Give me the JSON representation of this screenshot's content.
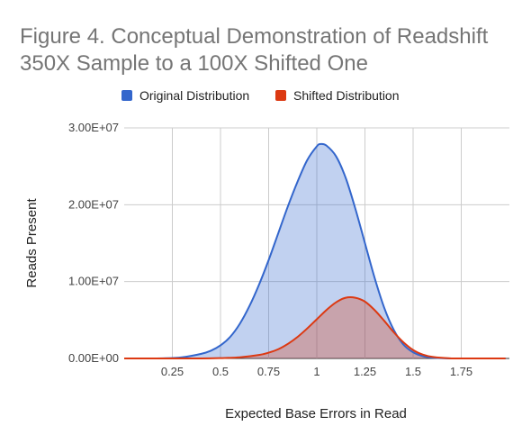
{
  "chart_data": {
    "type": "area",
    "title_line1": "Figure 4. Conceptual Demonstration of Readshift",
    "title_line2": "350X Sample to a 100X Shifted One",
    "xlabel": "Expected Base Errors in Read",
    "ylabel": "Reads Present",
    "xlim": [
      0,
      2
    ],
    "ylim": [
      0,
      30000000
    ],
    "x_ticks": [
      0.25,
      0.5,
      0.75,
      1,
      1.25,
      1.5,
      1.75
    ],
    "x_tick_labels": [
      "0.25",
      "0.5",
      "0.75",
      "1",
      "1.25",
      "1.5",
      "1.75"
    ],
    "y_ticks": [
      0,
      10000000,
      20000000,
      30000000
    ],
    "y_tick_labels": [
      "0.00E+00",
      "1.00E+07",
      "2.00E+07",
      "3.00E+07"
    ],
    "grid": true,
    "legend_position": "top",
    "series": [
      {
        "name": "Original Distribution",
        "color": "#3366cc",
        "x": [
          0.0,
          0.1,
          0.2,
          0.3,
          0.4,
          0.45,
          0.5,
          0.55,
          0.6,
          0.65,
          0.7,
          0.75,
          0.8,
          0.85,
          0.9,
          0.95,
          1.0,
          1.02,
          1.05,
          1.1,
          1.15,
          1.2,
          1.25,
          1.3,
          1.35,
          1.4,
          1.45,
          1.5,
          1.55,
          1.6,
          1.7,
          1.8,
          1.9,
          1.98
        ],
        "y": [
          0,
          0,
          20000,
          150000,
          600000,
          1000000,
          1700000,
          2800000,
          4500000,
          6800000,
          9600000,
          12800000,
          16300000,
          19800000,
          23000000,
          25800000,
          27600000,
          27900000,
          27700000,
          26300000,
          23500000,
          19500000,
          15000000,
          10500000,
          6600000,
          3700000,
          1800000,
          800000,
          300000,
          100000,
          0,
          0,
          0,
          0
        ]
      },
      {
        "name": "Shifted Distribution",
        "color": "#dc3912",
        "x": [
          0.0,
          0.2,
          0.4,
          0.5,
          0.6,
          0.7,
          0.75,
          0.8,
          0.85,
          0.9,
          0.95,
          1.0,
          1.05,
          1.1,
          1.15,
          1.2,
          1.25,
          1.3,
          1.35,
          1.4,
          1.45,
          1.5,
          1.55,
          1.6,
          1.7,
          1.8,
          1.9,
          1.98
        ],
        "y": [
          0,
          0,
          0,
          50000,
          150000,
          450000,
          750000,
          1200000,
          1900000,
          2800000,
          3900000,
          5100000,
          6300000,
          7300000,
          7900000,
          7900000,
          7400000,
          6300000,
          4900000,
          3400000,
          2100000,
          1100000,
          500000,
          200000,
          0,
          0,
          0,
          0
        ]
      }
    ]
  }
}
